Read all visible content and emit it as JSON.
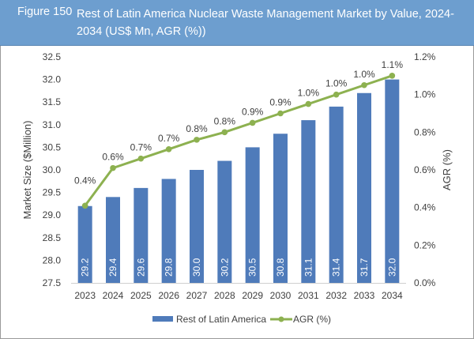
{
  "figure": {
    "label": "Figure 150",
    "title": "Rest of Latin America Nuclear Waste Management Market by Value, 2024-2034 (US$ Mn, AGR (%))"
  },
  "colors": {
    "title_bar": "#6d9ecf",
    "bar": "#4f7bba",
    "line": "#8db150",
    "axis_text": "#404040"
  },
  "chart_data": {
    "type": "bar",
    "title": "Rest of Latin America Nuclear Waste Management Market by Value, 2024-2034 (US$ Mn, AGR (%))",
    "categories": [
      "2023",
      "2024",
      "2025",
      "2026",
      "2027",
      "2028",
      "2029",
      "2030",
      "2031",
      "2032",
      "2033",
      "2034"
    ],
    "series": [
      {
        "name": "Rest of Latin America",
        "type": "bar",
        "axis": "left",
        "values": [
          29.2,
          29.4,
          29.6,
          29.8,
          30.0,
          30.2,
          30.5,
          30.8,
          31.1,
          31.4,
          31.7,
          32.0
        ],
        "labels": [
          "29.2",
          "29.4",
          "29.6",
          "29.8",
          "30.0",
          "30.2",
          "30.5",
          "30.8",
          "31.1",
          "31.4",
          "31.7",
          "32.0"
        ]
      },
      {
        "name": "AGR (%)",
        "type": "line",
        "axis": "right",
        "values": [
          0.41,
          0.61,
          0.66,
          0.71,
          0.76,
          0.8,
          0.85,
          0.9,
          0.95,
          1.0,
          1.05,
          1.1
        ],
        "labels": [
          "0.4%",
          "0.6%",
          "0.7%",
          "0.7%",
          "0.8%",
          "0.8%",
          "0.9%",
          "0.9%",
          "1.0%",
          "1.0%",
          "1.0%",
          "1.1%"
        ]
      }
    ],
    "xlabel": "",
    "ylabel": "Market Size ($Million)",
    "y2label": "AGR (%)",
    "ylim": [
      27.5,
      32.5
    ],
    "y2lim": [
      0.0,
      1.2
    ],
    "yticks": [
      "27.5",
      "28.0",
      "28.5",
      "29.0",
      "29.5",
      "30.0",
      "30.5",
      "31.0",
      "31.5",
      "32.0",
      "32.5"
    ],
    "y2ticks": [
      "0.0%",
      "0.2%",
      "0.4%",
      "0.6%",
      "0.8%",
      "1.0%",
      "1.2%"
    ],
    "grid": false,
    "legend": "bottom-center"
  }
}
